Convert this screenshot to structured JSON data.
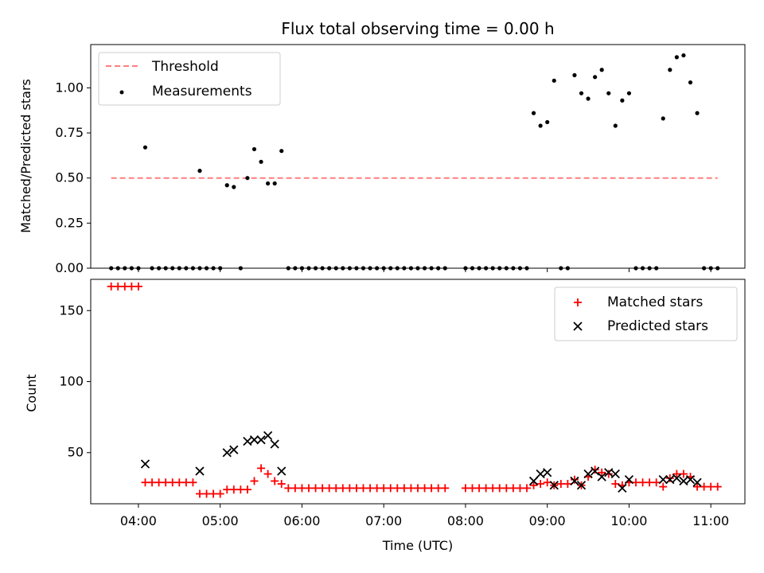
{
  "chart_data": [
    {
      "type": "scatter",
      "title": "Flux total observing time = 0.00 h",
      "xlabel": "",
      "ylabel": "Matched/Predicted stars",
      "ylim": [
        0,
        1.24
      ],
      "yticks": [
        "0.00",
        "0.25",
        "0.50",
        "0.75",
        "1.00"
      ],
      "ytick_values": [
        0,
        0.25,
        0.5,
        0.75,
        1.0
      ],
      "legend_position": "top-left",
      "threshold": {
        "name": "Threshold",
        "value": 0.5,
        "x_range": [
          "03:40",
          "11:05"
        ],
        "color": "#ff7f7f",
        "style": "dashed"
      },
      "series": [
        {
          "name": "Measurements",
          "color": "#000000",
          "points": [
            [
              "03:40",
              0
            ],
            [
              "03:45",
              0
            ],
            [
              "03:50",
              0
            ],
            [
              "03:55",
              0
            ],
            [
              "04:00",
              0
            ],
            [
              "04:05",
              0.67
            ],
            [
              "04:10",
              0
            ],
            [
              "04:15",
              0
            ],
            [
              "04:20",
              0
            ],
            [
              "04:25",
              0
            ],
            [
              "04:30",
              0
            ],
            [
              "04:35",
              0
            ],
            [
              "04:40",
              0
            ],
            [
              "04:45",
              0
            ],
            [
              "04:50",
              0
            ],
            [
              "04:45",
              0.54
            ],
            [
              "04:55",
              0
            ],
            [
              "05:00",
              0
            ],
            [
              "05:05",
              0.46
            ],
            [
              "05:10",
              0.45
            ],
            [
              "05:15",
              0
            ],
            [
              "05:20",
              0.5
            ],
            [
              "05:25",
              0.66
            ],
            [
              "05:30",
              0.59
            ],
            [
              "05:35",
              0.47
            ],
            [
              "05:40",
              0.47
            ],
            [
              "05:45",
              0.65
            ],
            [
              "05:50",
              0
            ],
            [
              "05:55",
              0
            ],
            [
              "06:00",
              0
            ],
            [
              "06:05",
              0
            ],
            [
              "06:10",
              0
            ],
            [
              "06:15",
              0
            ],
            [
              "06:20",
              0
            ],
            [
              "06:25",
              0
            ],
            [
              "06:30",
              0
            ],
            [
              "06:35",
              0
            ],
            [
              "06:40",
              0
            ],
            [
              "06:45",
              0
            ],
            [
              "06:50",
              0
            ],
            [
              "06:55",
              0
            ],
            [
              "07:00",
              0
            ],
            [
              "07:05",
              0
            ],
            [
              "07:10",
              0
            ],
            [
              "07:15",
              0
            ],
            [
              "07:20",
              0
            ],
            [
              "07:25",
              0
            ],
            [
              "07:30",
              0
            ],
            [
              "07:35",
              0
            ],
            [
              "07:40",
              0
            ],
            [
              "07:45",
              0
            ],
            [
              "08:00",
              0
            ],
            [
              "08:05",
              0
            ],
            [
              "08:10",
              0
            ],
            [
              "08:15",
              0
            ],
            [
              "08:20",
              0
            ],
            [
              "08:25",
              0
            ],
            [
              "08:30",
              0
            ],
            [
              "08:35",
              0
            ],
            [
              "08:40",
              0
            ],
            [
              "08:45",
              0
            ],
            [
              "08:50",
              0.86
            ],
            [
              "08:55",
              0.79
            ],
            [
              "09:00",
              0.81
            ],
            [
              "09:05",
              1.04
            ],
            [
              "09:10",
              0
            ],
            [
              "09:15",
              0
            ],
            [
              "09:20",
              1.07
            ],
            [
              "09:25",
              0.97
            ],
            [
              "09:30",
              0.94
            ],
            [
              "09:35",
              1.06
            ],
            [
              "09:40",
              1.1
            ],
            [
              "09:45",
              0.97
            ],
            [
              "09:50",
              0.79
            ],
            [
              "09:55",
              0.93
            ],
            [
              "10:00",
              0.97
            ],
            [
              "10:05",
              0
            ],
            [
              "10:10",
              0
            ],
            [
              "10:15",
              0
            ],
            [
              "10:20",
              0
            ],
            [
              "10:25",
              0.83
            ],
            [
              "10:30",
              1.1
            ],
            [
              "10:35",
              1.17
            ],
            [
              "10:40",
              1.18
            ],
            [
              "10:45",
              1.03
            ],
            [
              "10:50",
              0.86
            ],
            [
              "10:55",
              0
            ],
            [
              "11:00",
              0
            ],
            [
              "11:05",
              0
            ]
          ]
        }
      ]
    },
    {
      "type": "scatter",
      "title": "",
      "xlabel": "Time (UTC)",
      "ylabel": "Count",
      "ylim": [
        14,
        172
      ],
      "yticks": [
        "50",
        "100",
        "150"
      ],
      "ytick_values": [
        50,
        100,
        150
      ],
      "xlim": [
        "03:25",
        "11:25"
      ],
      "xticks": [
        "04:00",
        "05:00",
        "06:00",
        "07:00",
        "08:00",
        "09:00",
        "10:00",
        "11:00"
      ],
      "legend_position": "top-right",
      "series": [
        {
          "name": "Matched stars",
          "marker": "plus",
          "color": "#ff0000",
          "points": [
            [
              "03:40",
              167
            ],
            [
              "03:45",
              167
            ],
            [
              "03:50",
              167
            ],
            [
              "03:55",
              167
            ],
            [
              "04:00",
              167
            ],
            [
              "04:05",
              29
            ],
            [
              "04:10",
              29
            ],
            [
              "04:15",
              29
            ],
            [
              "04:20",
              29
            ],
            [
              "04:25",
              29
            ],
            [
              "04:30",
              29
            ],
            [
              "04:35",
              29
            ],
            [
              "04:40",
              29
            ],
            [
              "04:45",
              21
            ],
            [
              "04:50",
              21
            ],
            [
              "04:55",
              21
            ],
            [
              "05:00",
              21
            ],
            [
              "05:05",
              24
            ],
            [
              "05:10",
              24
            ],
            [
              "05:15",
              24
            ],
            [
              "05:20",
              24
            ],
            [
              "05:25",
              30
            ],
            [
              "05:30",
              39
            ],
            [
              "05:35",
              35
            ],
            [
              "05:40",
              30
            ],
            [
              "05:45",
              28
            ],
            [
              "05:50",
              25
            ],
            [
              "05:55",
              25
            ],
            [
              "06:00",
              25
            ],
            [
              "06:05",
              25
            ],
            [
              "06:10",
              25
            ],
            [
              "06:15",
              25
            ],
            [
              "06:20",
              25
            ],
            [
              "06:25",
              25
            ],
            [
              "06:30",
              25
            ],
            [
              "06:35",
              25
            ],
            [
              "06:40",
              25
            ],
            [
              "06:45",
              25
            ],
            [
              "06:50",
              25
            ],
            [
              "06:55",
              25
            ],
            [
              "07:00",
              25
            ],
            [
              "07:05",
              25
            ],
            [
              "07:10",
              25
            ],
            [
              "07:15",
              25
            ],
            [
              "07:20",
              25
            ],
            [
              "07:25",
              25
            ],
            [
              "07:30",
              25
            ],
            [
              "07:35",
              25
            ],
            [
              "07:40",
              25
            ],
            [
              "07:45",
              25
            ],
            [
              "08:00",
              25
            ],
            [
              "08:05",
              25
            ],
            [
              "08:10",
              25
            ],
            [
              "08:15",
              25
            ],
            [
              "08:20",
              25
            ],
            [
              "08:25",
              25
            ],
            [
              "08:30",
              25
            ],
            [
              "08:35",
              25
            ],
            [
              "08:40",
              25
            ],
            [
              "08:45",
              25
            ],
            [
              "08:50",
              27
            ],
            [
              "08:55",
              28
            ],
            [
              "09:00",
              29
            ],
            [
              "09:05",
              27
            ],
            [
              "09:10",
              28
            ],
            [
              "09:15",
              28
            ],
            [
              "09:20",
              31
            ],
            [
              "09:25",
              27
            ],
            [
              "09:30",
              33
            ],
            [
              "09:35",
              38
            ],
            [
              "09:40",
              36
            ],
            [
              "09:45",
              35
            ],
            [
              "09:50",
              28
            ],
            [
              "09:55",
              27
            ],
            [
              "10:00",
              29
            ],
            [
              "10:05",
              29
            ],
            [
              "10:10",
              29
            ],
            [
              "10:15",
              29
            ],
            [
              "10:20",
              29
            ],
            [
              "10:25",
              26
            ],
            [
              "10:30",
              32
            ],
            [
              "10:35",
              35
            ],
            [
              "10:40",
              35
            ],
            [
              "10:45",
              33
            ],
            [
              "10:50",
              26
            ],
            [
              "10:55",
              26
            ],
            [
              "11:00",
              26
            ],
            [
              "11:05",
              26
            ]
          ]
        },
        {
          "name": "Predicted stars",
          "marker": "x",
          "color": "#000000",
          "points": [
            [
              "04:05",
              42
            ],
            [
              "04:45",
              37
            ],
            [
              "05:05",
              50
            ],
            [
              "05:10",
              52
            ],
            [
              "05:20",
              58
            ],
            [
              "05:25",
              59
            ],
            [
              "05:30",
              59
            ],
            [
              "05:35",
              62
            ],
            [
              "05:40",
              56
            ],
            [
              "05:45",
              37
            ],
            [
              "08:50",
              30
            ],
            [
              "08:55",
              35
            ],
            [
              "09:00",
              36
            ],
            [
              "09:05",
              27
            ],
            [
              "09:20",
              30
            ],
            [
              "09:25",
              27
            ],
            [
              "09:30",
              35
            ],
            [
              "09:35",
              37
            ],
            [
              "09:40",
              33
            ],
            [
              "09:45",
              36
            ],
            [
              "09:50",
              35
            ],
            [
              "09:55",
              25
            ],
            [
              "10:00",
              31
            ],
            [
              "10:25",
              31
            ],
            [
              "10:30",
              31
            ],
            [
              "10:35",
              32
            ],
            [
              "10:40",
              30
            ],
            [
              "10:45",
              31
            ],
            [
              "10:50",
              29
            ]
          ]
        }
      ]
    }
  ]
}
